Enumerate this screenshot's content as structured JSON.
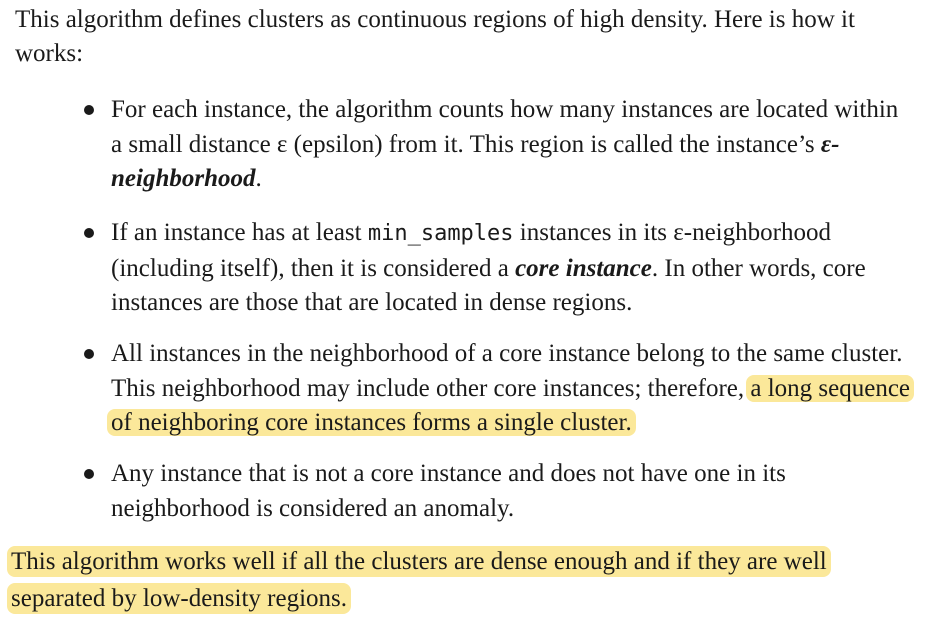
{
  "intro": "This algorithm defines clusters as continuous regions of high density. Here is how it works:",
  "bullets": {
    "b1": {
      "text_a": "For each instance, the algorithm counts how many instances are located within a small distance ε (epsilon) from it. This region is called the instance’s ",
      "term": "ε-neighborhood",
      "text_b": "."
    },
    "b2": {
      "text_a": "If an instance has at least ",
      "code": "min_samples",
      "text_b": " instances in its ε-neighborhood (including itself), then it is considered a ",
      "term": "core instance",
      "text_c": ". In other words, core instances are those that are located in dense regions."
    },
    "b3": {
      "text_a": "All instances in the neighborhood of a core instance belong to the same cluster. This neighborhood may include other core instances; therefore, ",
      "highlight": "a long sequence of neighboring core instances forms a single cluster."
    },
    "b4": {
      "text": "Any instance that is not a core instance and does not have one in its neighborhood is considered an anomaly."
    }
  },
  "closing": {
    "highlight": "This algorithm works well if all the clusters are dense enough and if they are well separated by low-density regions."
  },
  "colors": {
    "text": "#1a1a1a",
    "highlight": "#fbe89a",
    "background": "#ffffff"
  }
}
